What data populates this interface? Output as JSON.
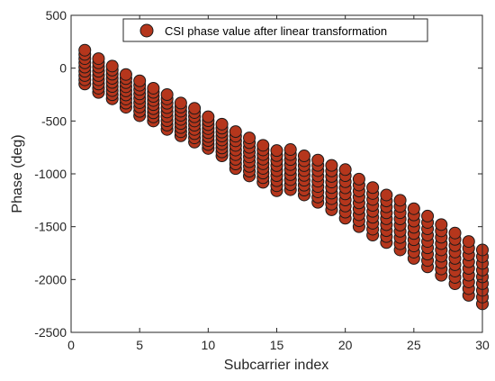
{
  "chart_data": {
    "type": "scatter",
    "title": "",
    "xlabel": "Subcarrier index",
    "ylabel": "Phase (deg)",
    "xlim": [
      0,
      30
    ],
    "ylim": [
      -2500,
      500
    ],
    "xticks": [
      "0",
      "5",
      "10",
      "15",
      "20",
      "25",
      "30"
    ],
    "yticks": [
      "500",
      "0",
      "-500",
      "-1000",
      "-1500",
      "-2000",
      "-2500"
    ],
    "grid": false,
    "legend_position": "top-center",
    "marker_color": "#b5361c",
    "marker_edge_color": "#1a1a1a",
    "series": [
      {
        "name": "CSI phase value after linear transformation",
        "columns": [
          {
            "x": 1,
            "min": -150,
            "max": 170
          },
          {
            "x": 2,
            "min": -230,
            "max": 90
          },
          {
            "x": 3,
            "min": -290,
            "max": 20
          },
          {
            "x": 4,
            "min": -370,
            "max": -60
          },
          {
            "x": 5,
            "min": -450,
            "max": -120
          },
          {
            "x": 6,
            "min": -500,
            "max": -190
          },
          {
            "x": 7,
            "min": -580,
            "max": -250
          },
          {
            "x": 8,
            "min": -640,
            "max": -330
          },
          {
            "x": 9,
            "min": -700,
            "max": -380
          },
          {
            "x": 10,
            "min": -760,
            "max": -460
          },
          {
            "x": 11,
            "min": -830,
            "max": -530
          },
          {
            "x": 12,
            "min": -950,
            "max": -600
          },
          {
            "x": 13,
            "min": -1020,
            "max": -660
          },
          {
            "x": 14,
            "min": -1080,
            "max": -730
          },
          {
            "x": 15,
            "min": -1160,
            "max": -780
          },
          {
            "x": 16,
            "min": -1150,
            "max": -770
          },
          {
            "x": 17,
            "min": -1200,
            "max": -830
          },
          {
            "x": 18,
            "min": -1270,
            "max": -870
          },
          {
            "x": 19,
            "min": -1340,
            "max": -920
          },
          {
            "x": 20,
            "min": -1420,
            "max": -960
          },
          {
            "x": 21,
            "min": -1500,
            "max": -1050
          },
          {
            "x": 22,
            "min": -1580,
            "max": -1130
          },
          {
            "x": 23,
            "min": -1650,
            "max": -1200
          },
          {
            "x": 24,
            "min": -1720,
            "max": -1250
          },
          {
            "x": 25,
            "min": -1800,
            "max": -1330
          },
          {
            "x": 26,
            "min": -1880,
            "max": -1400
          },
          {
            "x": 27,
            "min": -1960,
            "max": -1480
          },
          {
            "x": 28,
            "min": -2040,
            "max": -1560
          },
          {
            "x": 29,
            "min": -2150,
            "max": -1640
          },
          {
            "x": 30,
            "min": -2230,
            "max": -1720
          }
        ]
      }
    ]
  }
}
